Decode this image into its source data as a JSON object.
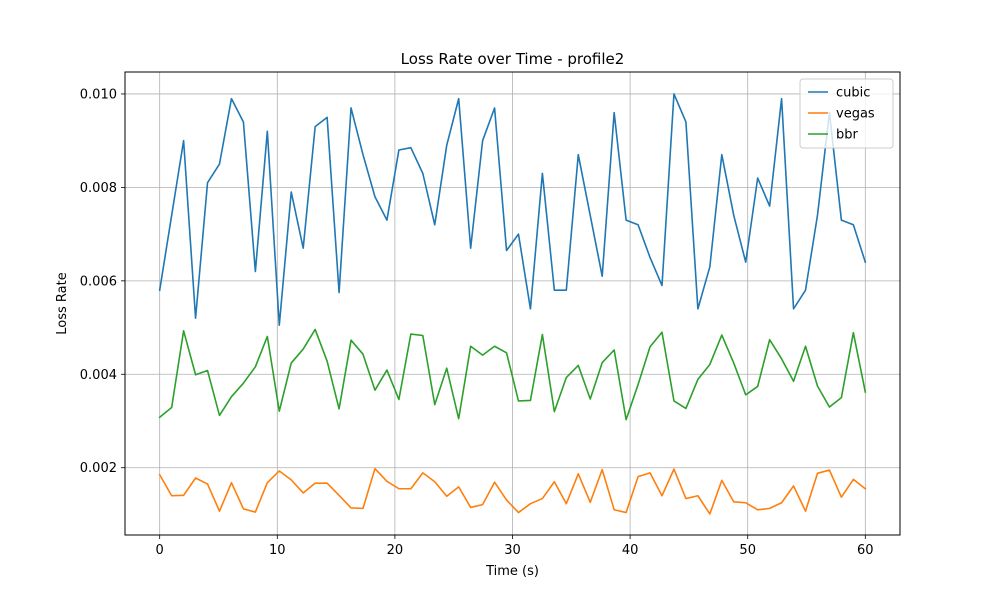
{
  "chart_data": {
    "type": "line",
    "title": "Loss Rate over Time - profile2",
    "xlabel": "Time (s)",
    "ylabel": "Loss Rate",
    "xlim": [
      -2.95,
      62.95
    ],
    "ylim": [
      0.00056,
      0.01047
    ],
    "xticks": [
      0,
      10,
      20,
      30,
      40,
      50,
      60
    ],
    "yticks": [
      0.002,
      0.004,
      0.006,
      0.008,
      0.01
    ],
    "xtick_labels": [
      "0",
      "10",
      "20",
      "30",
      "40",
      "50",
      "60"
    ],
    "ytick_labels": [
      "0.002",
      "0.004",
      "0.006",
      "0.008",
      "0.010"
    ],
    "grid": true,
    "legend_position": "top-right",
    "x": [
      0,
      1.017,
      2.034,
      3.051,
      4.068,
      5.085,
      6.102,
      7.119,
      8.136,
      9.153,
      10.169,
      11.186,
      12.203,
      13.22,
      14.237,
      15.254,
      16.271,
      17.288,
      18.305,
      19.322,
      20.339,
      21.356,
      22.373,
      23.39,
      24.407,
      25.424,
      26.441,
      27.458,
      28.475,
      29.492,
      30.508,
      31.525,
      32.542,
      33.559,
      34.576,
      35.593,
      36.61,
      37.627,
      38.644,
      39.661,
      40.678,
      41.695,
      42.712,
      43.729,
      44.746,
      45.763,
      46.78,
      47.797,
      48.814,
      49.831,
      50.847,
      51.864,
      52.881,
      53.898,
      54.915,
      55.932,
      56.949,
      57.966,
      58.983,
      60
    ],
    "series": [
      {
        "name": "cubic",
        "color": "#1f77b4",
        "values": [
          0.0058,
          0.0074,
          0.009,
          0.0052,
          0.0081,
          0.0085,
          0.0099,
          0.0094,
          0.0062,
          0.0092,
          0.00505,
          0.0079,
          0.0067,
          0.0093,
          0.0095,
          0.00575,
          0.0097,
          0.0087,
          0.0078,
          0.0073,
          0.0088,
          0.00885,
          0.0083,
          0.0072,
          0.0089,
          0.0099,
          0.0067,
          0.009,
          0.0097,
          0.00665,
          0.007,
          0.0054,
          0.0083,
          0.0058,
          0.0058,
          0.0087,
          0.0074,
          0.0061,
          0.0096,
          0.0073,
          0.0072,
          0.0065,
          0.0059,
          0.01,
          0.0094,
          0.0054,
          0.0063,
          0.0087,
          0.0074,
          0.0064,
          0.0082,
          0.0076,
          0.0099,
          0.0054,
          0.0058,
          0.0074,
          0.0096,
          0.0073,
          0.0072,
          0.0064
        ]
      },
      {
        "name": "vegas",
        "color": "#ff7f0e",
        "values": [
          0.00185,
          0.0014,
          0.00141,
          0.00178,
          0.00165,
          0.00107,
          0.00168,
          0.00112,
          0.00105,
          0.00168,
          0.00193,
          0.00174,
          0.00146,
          0.00167,
          0.00167,
          0.00141,
          0.00114,
          0.00113,
          0.00198,
          0.00171,
          0.00155,
          0.00155,
          0.00189,
          0.0017,
          0.00139,
          0.00159,
          0.00115,
          0.00121,
          0.00169,
          0.00131,
          0.00104,
          0.00123,
          0.00134,
          0.0017,
          0.00123,
          0.00187,
          0.00126,
          0.00196,
          0.0011,
          0.00104,
          0.00181,
          0.00189,
          0.0014,
          0.00197,
          0.00134,
          0.0014,
          0.00101,
          0.00173,
          0.00127,
          0.00125,
          0.0011,
          0.00113,
          0.00125,
          0.00161,
          0.00107,
          0.00188,
          0.00195,
          0.00137,
          0.00175,
          0.00155
        ]
      },
      {
        "name": "bbr",
        "color": "#2ca02c",
        "values": [
          0.00308,
          0.00329,
          0.00493,
          0.00399,
          0.00408,
          0.00312,
          0.00352,
          0.00381,
          0.00416,
          0.00481,
          0.00321,
          0.00424,
          0.00454,
          0.00496,
          0.00428,
          0.00326,
          0.00473,
          0.00443,
          0.00366,
          0.00409,
          0.00346,
          0.00486,
          0.00483,
          0.00335,
          0.00413,
          0.00305,
          0.0046,
          0.00441,
          0.0046,
          0.00446,
          0.00343,
          0.00344,
          0.00485,
          0.0032,
          0.00393,
          0.00419,
          0.00347,
          0.00425,
          0.00452,
          0.00303,
          0.00378,
          0.00459,
          0.0049,
          0.00343,
          0.00327,
          0.00389,
          0.00421,
          0.00484,
          0.00424,
          0.00356,
          0.00374,
          0.00474,
          0.00433,
          0.00385,
          0.0046,
          0.00375,
          0.0033,
          0.0035,
          0.00489,
          0.00362
        ]
      }
    ]
  }
}
